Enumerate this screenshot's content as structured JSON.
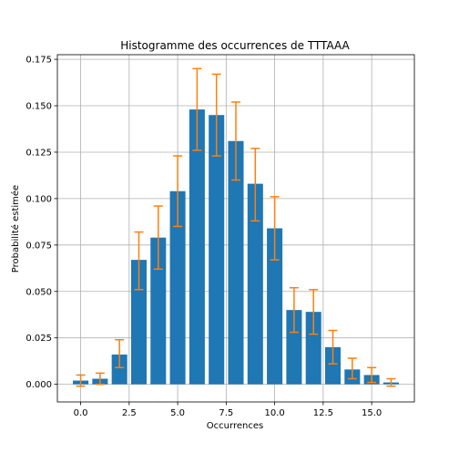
{
  "chart_data": {
    "type": "bar",
    "title": "Histogramme des occurrences de TTTAAA",
    "xlabel": "Occurrences",
    "ylabel": "Probabilité estimée",
    "xlim": [
      -1.2,
      17.2
    ],
    "ylim": [
      -0.0095,
      0.1775
    ],
    "grid": true,
    "bar_color": "#1f77b4",
    "errorbar_color": "#ff7f0e",
    "x_ticks": [
      0.0,
      2.5,
      5.0,
      7.5,
      10.0,
      12.5,
      15.0
    ],
    "x_tick_labels": [
      "0.0",
      "2.5",
      "5.0",
      "7.5",
      "10.0",
      "12.5",
      "15.0"
    ],
    "y_ticks": [
      0.0,
      0.025,
      0.05,
      0.075,
      0.1,
      0.125,
      0.15,
      0.175
    ],
    "y_tick_labels": [
      "0.000",
      "0.025",
      "0.050",
      "0.075",
      "0.100",
      "0.125",
      "0.150",
      "0.175"
    ],
    "x": [
      0,
      1,
      2,
      3,
      4,
      5,
      6,
      7,
      8,
      9,
      10,
      11,
      12,
      13,
      14,
      15,
      16
    ],
    "values": [
      0.002,
      0.003,
      0.016,
      0.067,
      0.079,
      0.104,
      0.148,
      0.145,
      0.131,
      0.108,
      0.084,
      0.04,
      0.039,
      0.02,
      0.008,
      0.005,
      0.001
    ],
    "err_low": [
      -0.001,
      0.0,
      0.009,
      0.051,
      0.062,
      0.085,
      0.126,
      0.123,
      0.11,
      0.088,
      0.067,
      0.028,
      0.027,
      0.011,
      0.003,
      0.001,
      -0.001
    ],
    "err_high": [
      0.005,
      0.006,
      0.024,
      0.082,
      0.096,
      0.123,
      0.17,
      0.167,
      0.152,
      0.127,
      0.101,
      0.052,
      0.051,
      0.029,
      0.014,
      0.009,
      0.003
    ]
  }
}
